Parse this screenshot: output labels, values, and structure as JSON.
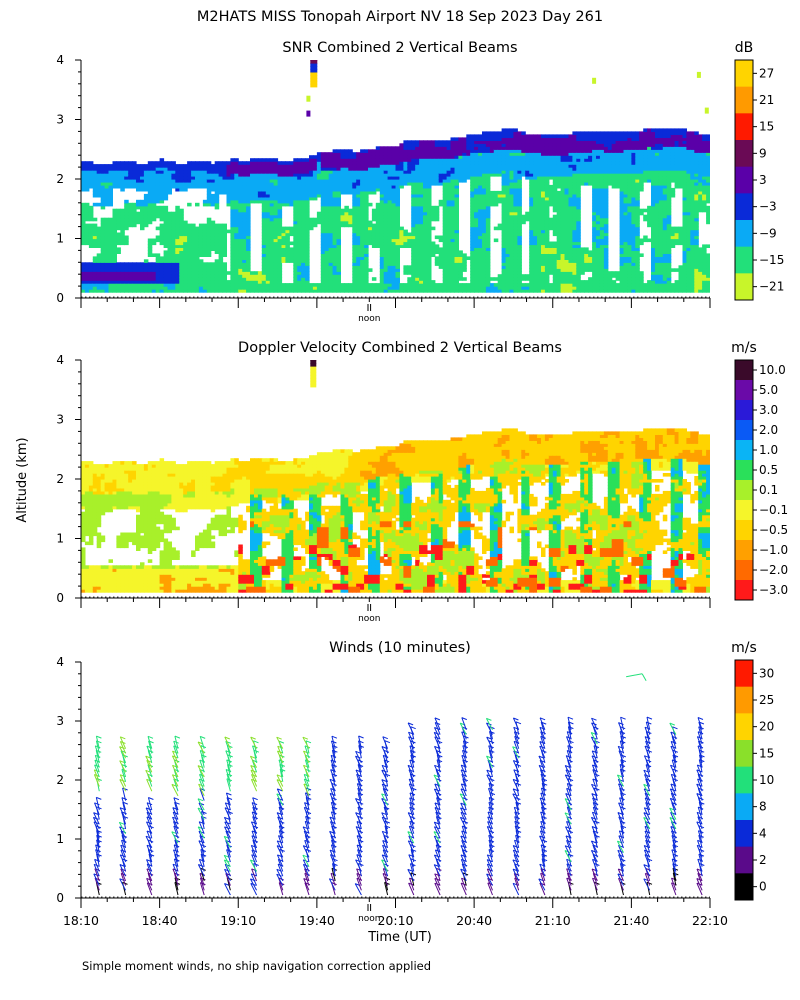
{
  "title": "M2HATS MISS Tonopah Airport NV  18 Sep 2023 Day 261",
  "ylabel": "Altitude (km)",
  "xlabel": "Time (UT)",
  "footnote": "Simple moment winds, no ship navigation correction applied",
  "noon_label": "noon",
  "chart_data": [
    {
      "type": "heatmap",
      "title": "SNR Combined 2 Vertical Beams",
      "units": "dB",
      "xlim_minutes_utc": [
        1090,
        1330
      ],
      "ylim_km": [
        0,
        4
      ],
      "yticks": [
        "0",
        "1",
        "2",
        "3",
        "4"
      ],
      "colorbar": {
        "labels": [
          "27",
          "21",
          "15",
          "9",
          "3",
          "−3",
          "−9",
          "−15",
          "−21"
        ],
        "colors": [
          "#ffd400",
          "#ff9a00",
          "#ff1a00",
          "#6a0a55",
          "#5a00a8",
          "#0a2ad8",
          "#0aaaf5",
          "#22e07a",
          "#c8f52a"
        ]
      }
    },
    {
      "type": "heatmap",
      "title": "Doppler Velocity Combined 2 Vertical Beams",
      "units": "m/s",
      "xlim_minutes_utc": [
        1090,
        1330
      ],
      "ylim_km": [
        0,
        4
      ],
      "yticks": [
        "0",
        "1",
        "2",
        "3",
        "4"
      ],
      "colorbar": {
        "labels": [
          "10.0",
          "5.0",
          "3.0",
          "2.0",
          "1.0",
          "0.5",
          "0.1",
          "−0.1",
          "−0.5",
          "−1.0",
          "−2.0",
          "−3.0"
        ],
        "colors": [
          "#3a0a2a",
          "#6a0aa8",
          "#2a1ad8",
          "#0a5af5",
          "#0ab4f5",
          "#2ae05a",
          "#a8f02a",
          "#f5f52a",
          "#ffd400",
          "#ffa000",
          "#ff6a00",
          "#ff1a1a"
        ]
      }
    },
    {
      "type": "barbs",
      "title": "Winds (10 minutes)",
      "units": "m/s",
      "xlim_minutes_utc": [
        1090,
        1330
      ],
      "ylim_km": [
        0,
        4
      ],
      "yticks": [
        "0",
        "1",
        "2",
        "3",
        "4"
      ],
      "xticks": [
        "18:10",
        "18:40",
        "19:10",
        "19:40",
        "20:10",
        "20:40",
        "21:10",
        "21:40",
        "22:10"
      ],
      "barb_times_utc": [
        "18:17",
        "18:27",
        "18:37",
        "18:47",
        "18:57",
        "19:07",
        "19:17",
        "19:27",
        "19:37",
        "19:47",
        "19:57",
        "20:07",
        "20:17",
        "20:27",
        "20:37",
        "20:47",
        "20:57",
        "21:07",
        "21:17",
        "21:27",
        "21:37",
        "21:47",
        "21:57",
        "22:07"
      ],
      "top_km": [
        2.6,
        2.6,
        2.6,
        2.6,
        2.6,
        2.6,
        2.6,
        2.6,
        2.6,
        2.6,
        2.6,
        2.6,
        2.8,
        2.9,
        2.9,
        2.9,
        2.9,
        2.9,
        2.9,
        2.9,
        2.9,
        2.9,
        2.8,
        2.9
      ],
      "colorbar": {
        "labels": [
          "30",
          "25",
          "20",
          "15",
          "10",
          "8",
          "4",
          "2",
          "0"
        ],
        "colors": [
          "#ff1a00",
          "#ff9a00",
          "#ffd400",
          "#8ae02a",
          "#22e07a",
          "#0aaaf5",
          "#0a2ad8",
          "#5a0a8a",
          "#000000"
        ]
      }
    }
  ]
}
